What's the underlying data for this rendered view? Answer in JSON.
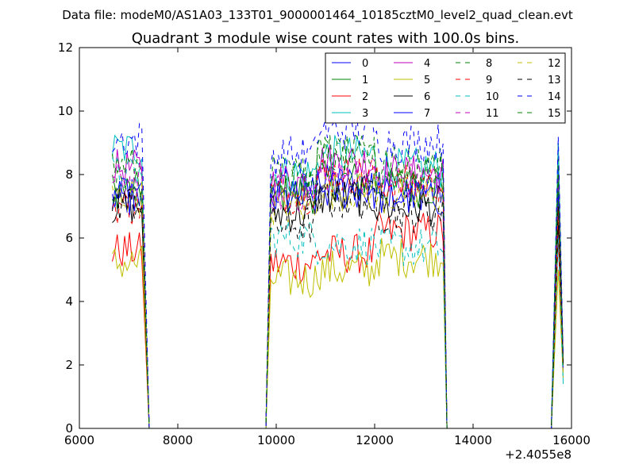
{
  "header": {
    "file_title": "Data file: modeM0/AS1A03_133T01_9000001464_10185cztM0_level2_quad_clean.evt"
  },
  "chart_data": {
    "type": "line",
    "title": "Quadrant 3 module wise count rates with 100.0s bins.",
    "xlabel": "",
    "ylabel": "",
    "x_offset_label": "+2.4055e8",
    "xlim": [
      6000,
      16000
    ],
    "ylim": [
      0,
      12
    ],
    "x_ticks": [
      6000,
      8000,
      10000,
      12000,
      14000,
      16000
    ],
    "y_ticks": [
      0,
      2,
      4,
      6,
      8,
      10,
      12
    ],
    "grid": false,
    "legend_placement": "top-right",
    "legend_columns": 4,
    "segments": [
      {
        "x_start": 6670,
        "x_end": 7270,
        "type": "plateau"
      },
      {
        "x_start": 7270,
        "x_end": 7420,
        "type": "drop"
      },
      {
        "x_start": 7420,
        "x_end": 9790,
        "type": "zero"
      },
      {
        "x_start": 9790,
        "x_end": 9890,
        "type": "rise"
      },
      {
        "x_start": 9890,
        "x_end": 13400,
        "type": "plateau"
      },
      {
        "x_start": 13400,
        "x_end": 13470,
        "type": "drop"
      },
      {
        "x_start": 13470,
        "x_end": 15590,
        "type": "zero"
      },
      {
        "x_start": 15590,
        "x_end": 15730,
        "type": "rise"
      },
      {
        "x_start": 15730,
        "x_end": 15830,
        "type": "spike"
      }
    ],
    "series": [
      {
        "name": "0",
        "color": "#0000ff",
        "dash": "solid",
        "levels": [
          7.2,
          7.5,
          7.7,
          7.5
        ]
      },
      {
        "name": "1",
        "color": "#008000",
        "dash": "solid",
        "levels": [
          7.5,
          7.4,
          7.8,
          7.6
        ]
      },
      {
        "name": "2",
        "color": "#ff0000",
        "dash": "solid",
        "levels": [
          5.6,
          5.2,
          5.5,
          6.2
        ]
      },
      {
        "name": "3",
        "color": "#00bfbf",
        "dash": "solid",
        "levels": [
          8.8,
          8.0,
          8.6,
          8.2
        ]
      },
      {
        "name": "4",
        "color": "#bf00bf",
        "dash": "solid",
        "levels": [
          8.2,
          7.8,
          8.4,
          8.0
        ]
      },
      {
        "name": "5",
        "color": "#bfbf00",
        "dash": "solid",
        "levels": [
          5.2,
          4.7,
          5.0,
          5.4
        ]
      },
      {
        "name": "6",
        "color": "#000000",
        "dash": "solid",
        "levels": [
          7.0,
          6.8,
          7.3,
          7.0
        ]
      },
      {
        "name": "7",
        "color": "#0000ff",
        "dash": "solid",
        "levels": [
          7.3,
          7.2,
          7.5,
          7.3
        ]
      },
      {
        "name": "8",
        "color": "#008000",
        "dash": "dashed",
        "levels": [
          8.3,
          8.0,
          8.8,
          8.3
        ]
      },
      {
        "name": "9",
        "color": "#ff0000",
        "dash": "dashed",
        "levels": [
          7.0,
          7.4,
          8.0,
          7.7
        ]
      },
      {
        "name": "10",
        "color": "#00bfbf",
        "dash": "dashed",
        "levels": [
          8.0,
          6.0,
          5.8,
          5.7
        ]
      },
      {
        "name": "11",
        "color": "#bf00bf",
        "dash": "dashed",
        "levels": [
          7.8,
          7.4,
          8.0,
          7.8
        ]
      },
      {
        "name": "12",
        "color": "#bfbf00",
        "dash": "dashed",
        "levels": [
          7.3,
          7.0,
          7.5,
          7.3
        ]
      },
      {
        "name": "13",
        "color": "#000000",
        "dash": "dashed",
        "levels": [
          7.1,
          6.4,
          7.2,
          6.8
        ]
      },
      {
        "name": "14",
        "color": "#0000ff",
        "dash": "dashed",
        "levels": [
          9.1,
          8.6,
          9.4,
          9.0
        ]
      },
      {
        "name": "15",
        "color": "#008000",
        "dash": "dashed",
        "levels": [
          7.6,
          7.8,
          8.6,
          8.0
        ]
      }
    ],
    "final_spike_values": [
      8.2,
      9.0,
      6.0,
      9.0,
      8.0,
      5.0,
      6.5,
      7.5,
      8.5,
      7.0,
      6.0,
      8.0,
      7.0,
      7.0,
      9.2,
      8.0
    ],
    "final_end_values": [
      2.2,
      2.0,
      1.8,
      1.4,
      2.0,
      1.6,
      2.0,
      1.8,
      2.0,
      2.0,
      1.5,
      2.2,
      1.7,
      2.0,
      2.3,
      2.0
    ]
  }
}
